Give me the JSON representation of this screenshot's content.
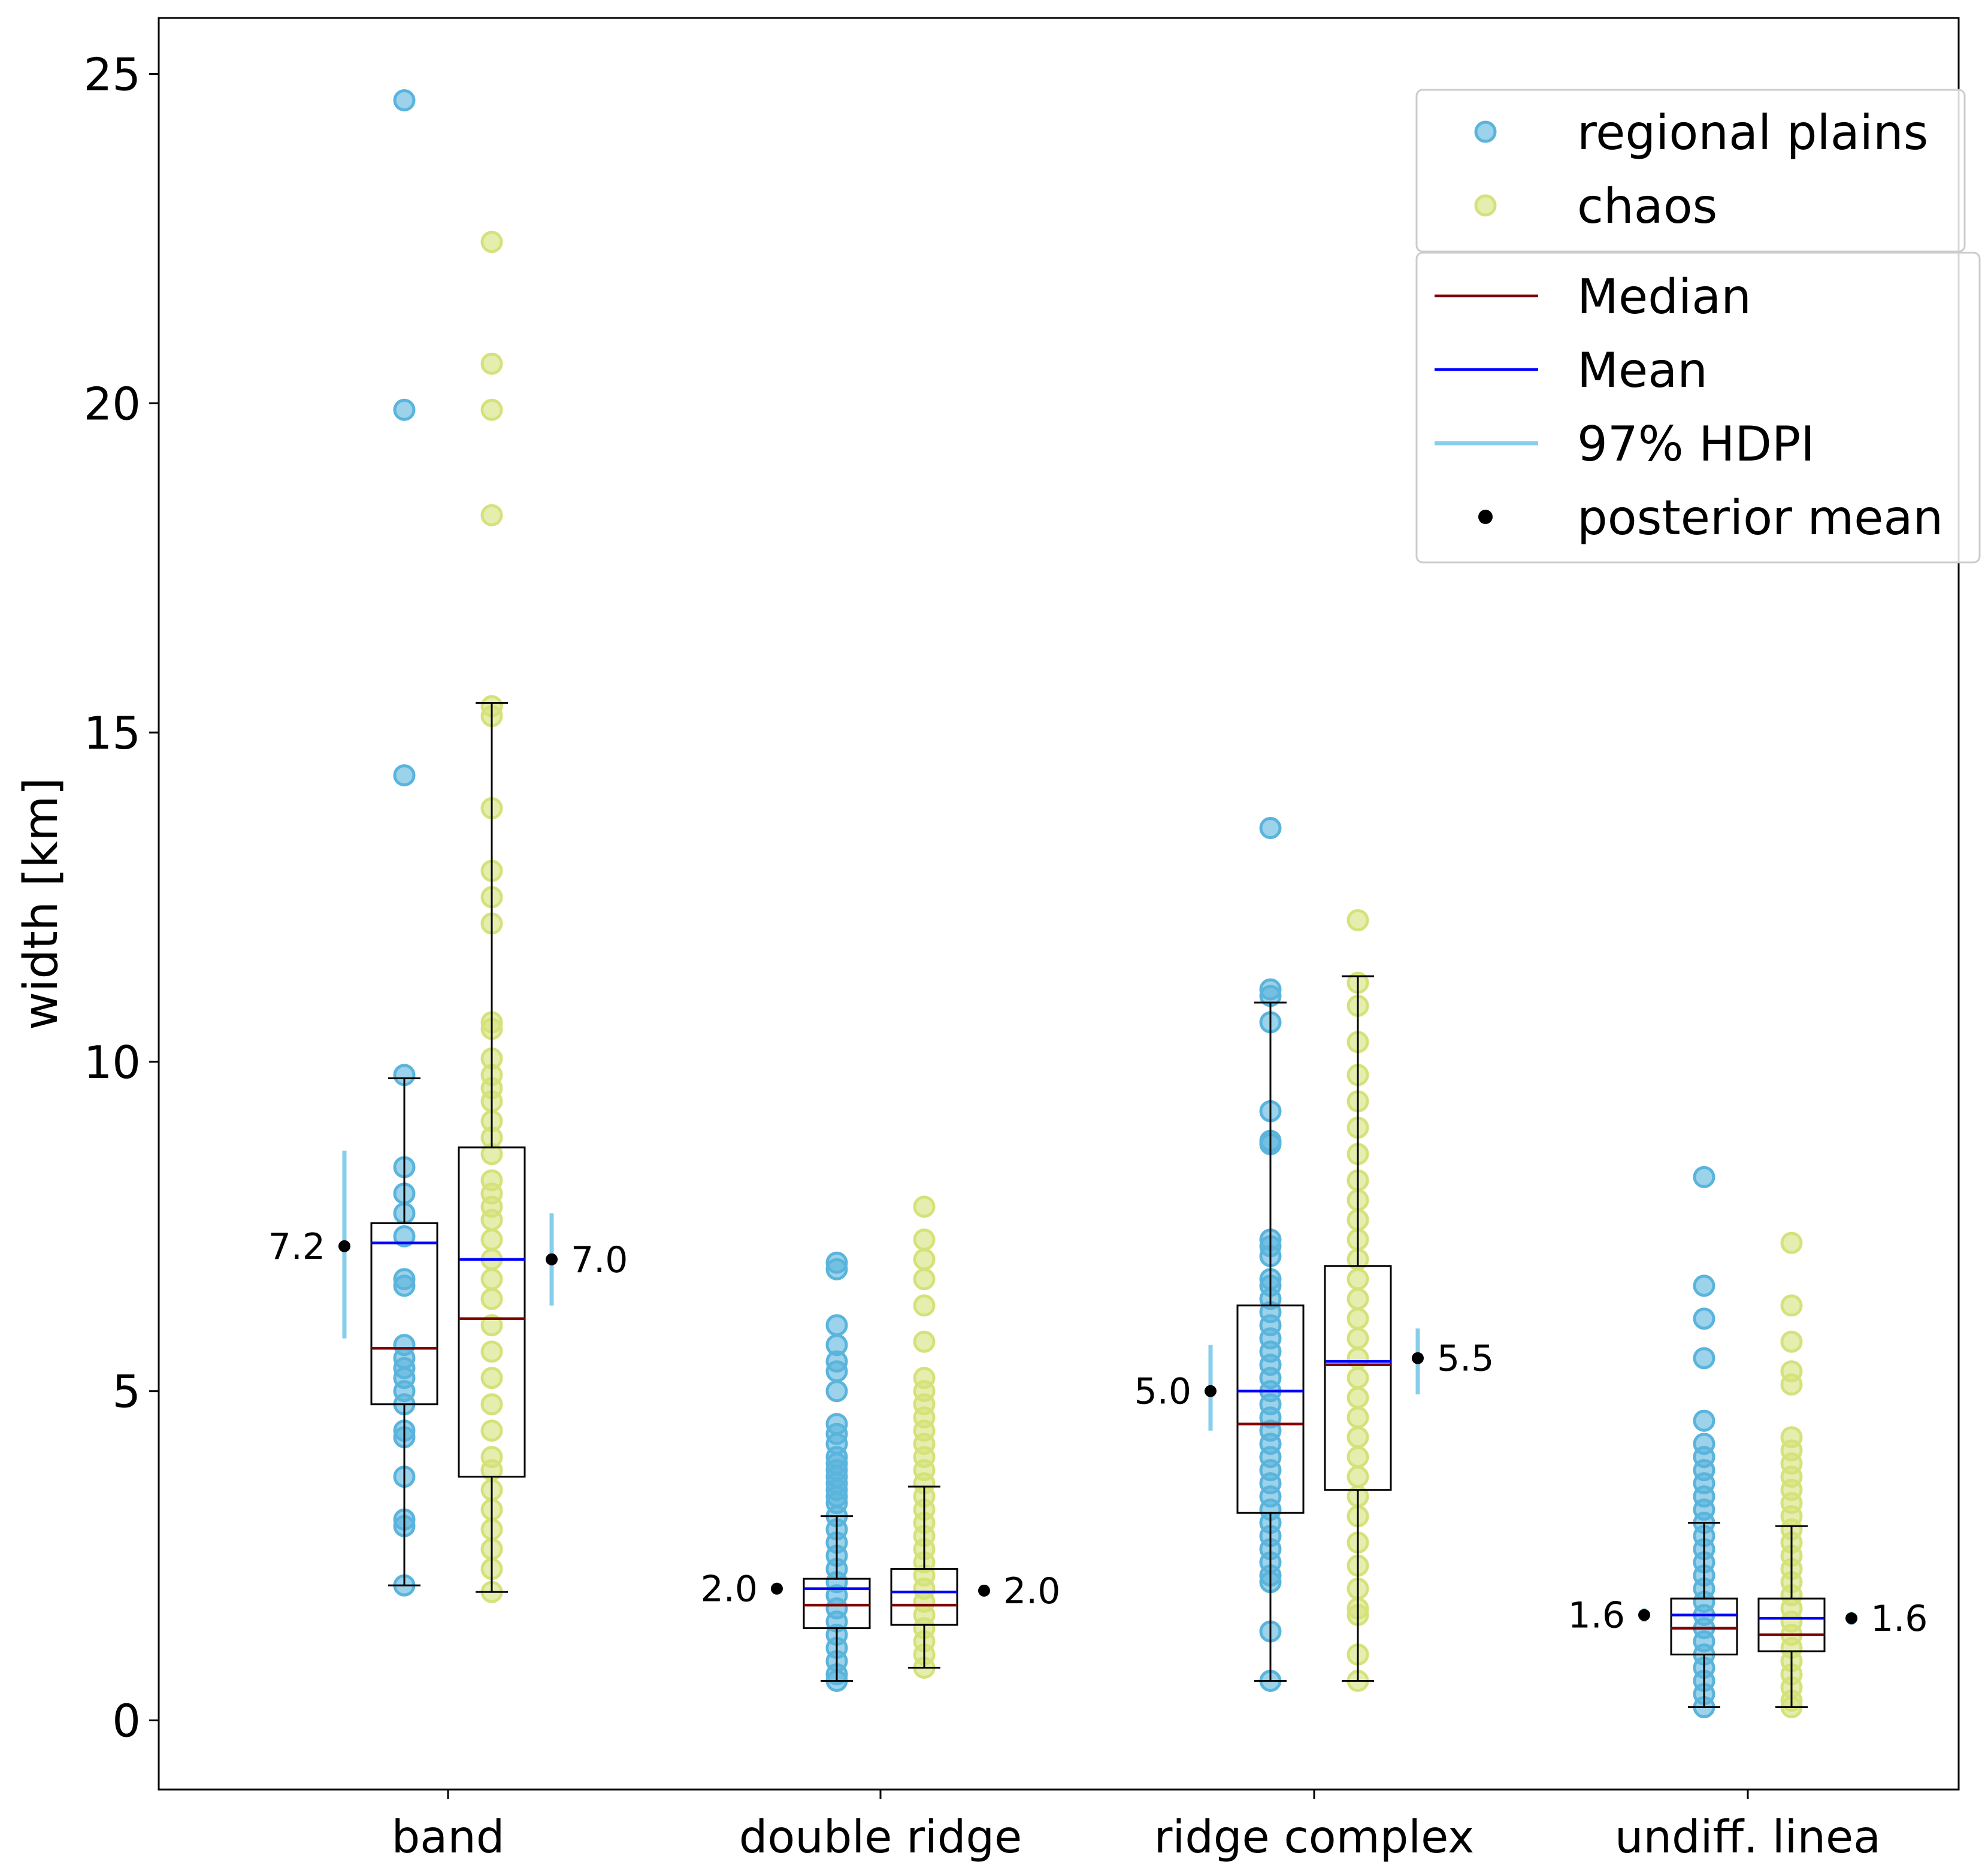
{
  "chart_data": {
    "type": "box",
    "ylabel": "width [km]",
    "xlabel": "",
    "ylim": [
      -1.05,
      25.85
    ],
    "yticks": [
      "0",
      "5",
      "10",
      "15",
      "20",
      "25"
    ],
    "grid": false,
    "categories": [
      "band",
      "double ridge",
      "ridge complex",
      "undiff. linea"
    ],
    "series": [
      {
        "name": "regional plains",
        "color": "#5ab4dc",
        "boxes": [
          {
            "whisker_low": 2.05,
            "q1": 4.8,
            "median": 5.65,
            "q3": 7.55,
            "whisker_high": 9.75,
            "mean": 7.25,
            "points": [
              24.6,
              19.9,
              14.35,
              9.8,
              8.4,
              8.0,
              7.7,
              7.35,
              6.7,
              6.6,
              5.7,
              5.5,
              5.35,
              5.2,
              5.0,
              4.8,
              4.4,
              4.3,
              3.7,
              3.05,
              2.95,
              2.05
            ]
          },
          {
            "whisker_low": 0.6,
            "q1": 1.4,
            "median": 1.75,
            "q3": 2.15,
            "whisker_high": 3.1,
            "mean": 2.0,
            "points": [
              6.95,
              6.85,
              6.0,
              5.7,
              5.45,
              5.3,
              5.0,
              4.5,
              4.35,
              4.2,
              4.0,
              3.9,
              3.8,
              3.7,
              3.6,
              3.5,
              3.4,
              3.3,
              3.1,
              2.9,
              2.7,
              2.5,
              2.3,
              2.1,
              1.9,
              1.7,
              1.5,
              1.3,
              1.1,
              0.9,
              0.7,
              0.6
            ]
          },
          {
            "whisker_low": 0.6,
            "q1": 3.15,
            "median": 4.5,
            "q3": 6.3,
            "whisker_high": 10.9,
            "mean": 5.0,
            "points": [
              13.55,
              11.1,
              11.0,
              10.6,
              9.25,
              8.8,
              8.75,
              7.3,
              7.2,
              7.05,
              6.7,
              6.6,
              6.4,
              6.2,
              6.0,
              5.8,
              5.6,
              5.4,
              5.2,
              5.0,
              4.8,
              4.6,
              4.4,
              4.2,
              4.0,
              3.8,
              3.6,
              3.4,
              3.2,
              3.0,
              2.8,
              2.6,
              2.4,
              2.2,
              2.1,
              1.35,
              0.6
            ]
          },
          {
            "whisker_low": 0.2,
            "q1": 1.0,
            "median": 1.4,
            "q3": 1.85,
            "whisker_high": 3.0,
            "mean": 1.6,
            "points": [
              8.25,
              6.6,
              6.1,
              5.5,
              4.55,
              4.2,
              4.0,
              3.8,
              3.6,
              3.4,
              3.2,
              3.0,
              2.8,
              2.6,
              2.4,
              2.2,
              2.0,
              1.8,
              1.6,
              1.4,
              1.2,
              1.0,
              0.8,
              0.6,
              0.4,
              0.2
            ]
          }
        ]
      },
      {
        "name": "chaos",
        "color": "#d5e27a",
        "boxes": [
          {
            "whisker_low": 1.95,
            "q1": 3.7,
            "median": 6.1,
            "q3": 8.7,
            "whisker_high": 15.45,
            "mean": 7.0,
            "points": [
              22.45,
              20.6,
              19.9,
              18.3,
              15.4,
              15.25,
              13.85,
              12.9,
              12.5,
              12.1,
              10.6,
              10.5,
              10.05,
              9.8,
              9.6,
              9.4,
              9.1,
              8.85,
              8.6,
              8.2,
              8.0,
              7.8,
              7.6,
              7.3,
              7.0,
              6.7,
              6.4,
              6.0,
              5.6,
              5.2,
              4.8,
              4.4,
              4.0,
              3.8,
              3.5,
              3.2,
              2.9,
              2.6,
              2.3,
              1.95
            ]
          },
          {
            "whisker_low": 0.8,
            "q1": 1.45,
            "median": 1.75,
            "q3": 2.3,
            "whisker_high": 3.55,
            "mean": 1.95,
            "points": [
              7.8,
              7.3,
              7.0,
              6.7,
              6.3,
              5.75,
              5.2,
              5.0,
              4.8,
              4.6,
              4.4,
              4.2,
              4.0,
              3.8,
              3.6,
              3.4,
              3.2,
              3.0,
              2.8,
              2.6,
              2.4,
              2.2,
              2.0,
              1.8,
              1.6,
              1.4,
              1.2,
              1.0,
              0.8
            ]
          },
          {
            "whisker_low": 0.6,
            "q1": 3.5,
            "median": 5.4,
            "q3": 6.9,
            "whisker_high": 11.3,
            "mean": 5.45,
            "points": [
              12.15,
              11.2,
              10.85,
              10.3,
              9.8,
              9.4,
              9.0,
              8.6,
              8.2,
              7.9,
              7.6,
              7.3,
              7.0,
              6.7,
              6.4,
              6.1,
              5.8,
              5.5,
              5.2,
              4.9,
              4.6,
              4.3,
              4.0,
              3.7,
              3.4,
              3.1,
              2.7,
              2.35,
              2.0,
              1.7,
              1.6,
              1.0,
              0.6
            ]
          },
          {
            "whisker_low": 0.2,
            "q1": 1.05,
            "median": 1.3,
            "q3": 1.85,
            "whisker_high": 2.95,
            "mean": 1.55,
            "points": [
              7.25,
              6.3,
              5.75,
              5.3,
              5.1,
              4.3,
              4.1,
              3.9,
              3.7,
              3.5,
              3.3,
              3.1,
              2.9,
              2.7,
              2.5,
              2.3,
              2.1,
              1.9,
              1.7,
              1.5,
              1.3,
              1.1,
              0.9,
              0.7,
              0.5,
              0.3,
              0.2
            ]
          }
        ]
      }
    ],
    "posterior": [
      {
        "category": "band",
        "series": "regional plains",
        "side": "left",
        "mean": 7.2,
        "hdpi": [
          5.8,
          8.65
        ],
        "label": "7.2"
      },
      {
        "category": "band",
        "series": "chaos",
        "side": "right",
        "mean": 7.0,
        "hdpi": [
          6.3,
          7.7
        ],
        "label": "7.0"
      },
      {
        "category": "double ridge",
        "series": "regional plains",
        "side": "left",
        "mean": 2.0,
        "hdpi": [
          1.92,
          2.08
        ],
        "label": "2.0"
      },
      {
        "category": "double ridge",
        "series": "chaos",
        "side": "right",
        "mean": 1.97,
        "hdpi": [
          1.89,
          2.05
        ],
        "label": "2.0"
      },
      {
        "category": "ridge complex",
        "series": "regional plains",
        "side": "left",
        "mean": 5.0,
        "hdpi": [
          4.4,
          5.7
        ],
        "label": "5.0"
      },
      {
        "category": "ridge complex",
        "series": "chaos",
        "side": "right",
        "mean": 5.5,
        "hdpi": [
          4.95,
          5.95
        ],
        "label": "5.5"
      },
      {
        "category": "undiff. linea",
        "series": "regional plains",
        "side": "left",
        "mean": 1.6,
        "hdpi": [
          1.5,
          1.7
        ],
        "label": "1.6"
      },
      {
        "category": "undiff. linea",
        "series": "chaos",
        "side": "right",
        "mean": 1.55,
        "hdpi": [
          1.45,
          1.65
        ],
        "label": "1.6"
      }
    ],
    "legend": {
      "placement": "top-right",
      "groups": [
        [
          {
            "label": "regional plains",
            "kind": "marker",
            "color": "#5ab4dc"
          },
          {
            "label": "chaos",
            "kind": "marker",
            "color": "#d5e27a"
          }
        ],
        [
          {
            "label": "Median",
            "kind": "line",
            "color": "#800000"
          },
          {
            "label": "Mean",
            "kind": "line",
            "color": "#0000ff"
          },
          {
            "label": "97% HDPI",
            "kind": "line",
            "color": "#87ceeb"
          },
          {
            "label": "posterior mean",
            "kind": "dot",
            "color": "#000000"
          }
        ]
      ]
    }
  }
}
